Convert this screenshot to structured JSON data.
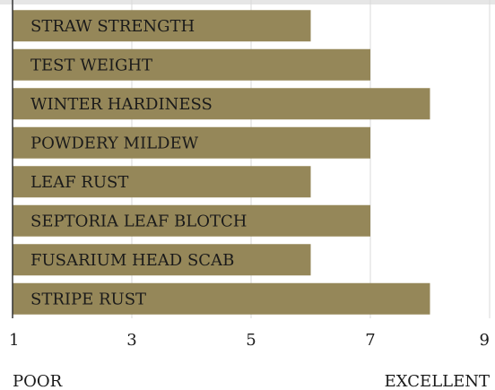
{
  "chart_data": {
    "type": "barh",
    "categories": [
      "STRAW STRENGTH",
      "TEST WEIGHT",
      "WINTER HARDINESS",
      "POWDERY MILDEW",
      "LEAF RUST",
      "SEPTORIA LEAF BLOTCH",
      "FUSARIUM HEAD SCAB",
      "STRIPE RUST"
    ],
    "values": [
      6,
      7,
      8,
      7,
      6,
      7,
      6,
      8
    ],
    "color": "#958759",
    "xlim": [
      1,
      9
    ],
    "xticks": [
      1,
      3,
      5,
      7,
      9
    ],
    "grid": true,
    "annotations": [
      "POOR",
      "EXCELLENT"
    ]
  }
}
